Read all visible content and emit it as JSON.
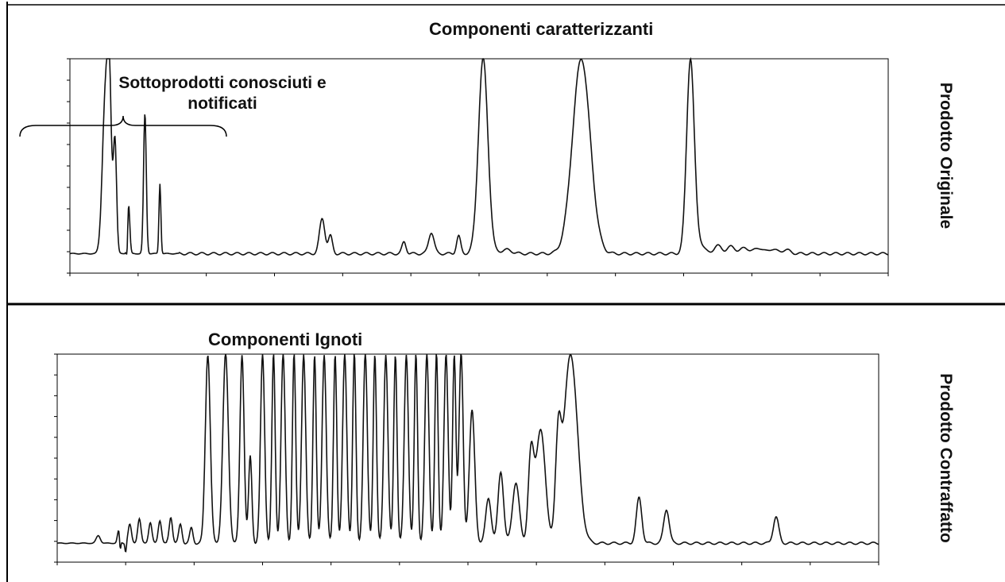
{
  "panels": {
    "top": {
      "title": "Componenti caratterizzanti",
      "annotation": "Sottoprodotti conosciuti e notificati",
      "side_label": "Prodotto Originale"
    },
    "bottom": {
      "title": "Componenti Ignoti",
      "side_label": "Prodotto Contraffatto"
    }
  },
  "colors": {
    "trace": "#111111",
    "frame": "#000000",
    "background": "#ffffff"
  },
  "chart_data": [
    {
      "type": "line",
      "title": "Componenti caratterizzanti",
      "xlim": [
        0,
        60
      ],
      "ylim": [
        -0.5,
        5
      ],
      "grid": false,
      "peaks": [
        [
          2.6,
          4.0,
          0.22
        ],
        [
          2.9,
          3.6,
          0.15
        ],
        [
          3.3,
          2.9,
          0.12
        ],
        [
          4.3,
          1.3,
          0.09
        ],
        [
          5.5,
          3.6,
          0.1
        ],
        [
          6.6,
          1.8,
          0.07
        ],
        [
          18.5,
          0.9,
          0.2
        ],
        [
          19.1,
          0.45,
          0.15
        ],
        [
          24.5,
          0.3,
          0.15
        ],
        [
          26.5,
          0.55,
          0.2
        ],
        [
          28.5,
          0.45,
          0.15
        ],
        [
          30.3,
          5.0,
          0.35
        ],
        [
          32.0,
          0.1,
          0.4
        ],
        [
          37.5,
          5.0,
          0.65
        ],
        [
          45.5,
          5.0,
          0.28
        ],
        [
          46.2,
          0.25,
          0.3
        ],
        [
          47.5,
          0.2,
          0.3
        ],
        [
          48.5,
          0.18,
          0.3
        ],
        [
          49.5,
          0.15,
          0.3
        ],
        [
          50.5,
          0.15,
          0.3
        ],
        [
          51.5,
          0.12,
          0.3
        ],
        [
          52.5,
          0.1,
          0.3
        ]
      ],
      "dips": [
        [
          4.2,
          -0.55,
          0.05
        ]
      ]
    },
    {
      "type": "line",
      "title": "Componenti Ignoti",
      "xlim": [
        0,
        60
      ],
      "ylim": [
        -0.5,
        5
      ],
      "grid": false,
      "peaks": [
        [
          3.0,
          0.2,
          0.15
        ],
        [
          4.5,
          0.35,
          0.1
        ],
        [
          5.3,
          0.5,
          0.12
        ],
        [
          6.0,
          0.65,
          0.12
        ],
        [
          6.8,
          0.55,
          0.12
        ],
        [
          7.5,
          0.6,
          0.12
        ],
        [
          8.3,
          0.7,
          0.12
        ],
        [
          9.0,
          0.5,
          0.12
        ],
        [
          9.8,
          0.4,
          0.12
        ],
        [
          11.0,
          5.0,
          0.18
        ],
        [
          12.3,
          5.0,
          0.2
        ],
        [
          13.5,
          5.0,
          0.15
        ],
        [
          14.1,
          2.3,
          0.12
        ],
        [
          15.0,
          5.0,
          0.15
        ],
        [
          15.8,
          5.0,
          0.12
        ],
        [
          16.5,
          5.0,
          0.15
        ],
        [
          17.3,
          5.0,
          0.12
        ],
        [
          18.0,
          5.0,
          0.15
        ],
        [
          18.8,
          5.0,
          0.12
        ],
        [
          19.5,
          5.0,
          0.15
        ],
        [
          20.3,
          5.0,
          0.12
        ],
        [
          21.0,
          5.0,
          0.15
        ],
        [
          21.7,
          5.0,
          0.12
        ],
        [
          22.5,
          5.0,
          0.15
        ],
        [
          23.2,
          5.0,
          0.12
        ],
        [
          24.0,
          5.0,
          0.15
        ],
        [
          24.7,
          5.0,
          0.12
        ],
        [
          25.5,
          5.0,
          0.15
        ],
        [
          26.2,
          5.0,
          0.12
        ],
        [
          27.0,
          5.0,
          0.15
        ],
        [
          27.7,
          5.0,
          0.12
        ],
        [
          28.4,
          5.0,
          0.15
        ],
        [
          29.0,
          5.0,
          0.12
        ],
        [
          29.5,
          5.0,
          0.15
        ],
        [
          30.3,
          3.5,
          0.2
        ],
        [
          31.5,
          1.2,
          0.2
        ],
        [
          32.4,
          1.9,
          0.2
        ],
        [
          33.5,
          1.6,
          0.25
        ],
        [
          34.6,
          2.2,
          0.2
        ],
        [
          35.3,
          3.0,
          0.35
        ],
        [
          36.6,
          2.4,
          0.2
        ],
        [
          37.5,
          5.0,
          0.5
        ],
        [
          42.5,
          1.2,
          0.2
        ],
        [
          44.5,
          0.9,
          0.2
        ],
        [
          52.5,
          0.7,
          0.2
        ]
      ],
      "dips": [
        [
          4.6,
          -0.35,
          0.05
        ],
        [
          5.0,
          -0.25,
          0.05
        ]
      ]
    }
  ]
}
